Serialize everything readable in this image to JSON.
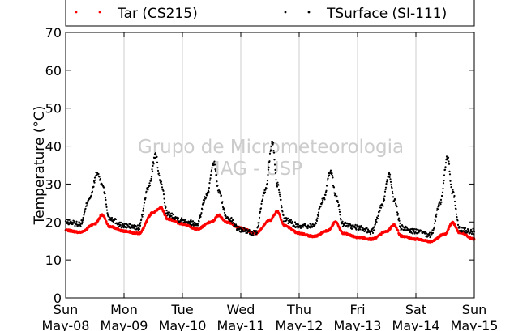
{
  "chart_data": {
    "type": "scatter",
    "ylabel": "Temperature (°C)",
    "ylim": [
      0,
      70
    ],
    "yticks": [
      0,
      10,
      20,
      30,
      40,
      50,
      60,
      70
    ],
    "x_unit": "day",
    "xlim": [
      "2015-05-08",
      "2015-05-15"
    ],
    "xtick_labels": [
      {
        "day": "Sun",
        "date": "May-08"
      },
      {
        "day": "Mon",
        "date": "May-09"
      },
      {
        "day": "Tue",
        "date": "May-10"
      },
      {
        "day": "Wed",
        "date": "May-11"
      },
      {
        "day": "Thu",
        "date": "May-12"
      },
      {
        "day": "Fri",
        "date": "May-13"
      },
      {
        "day": "Sat",
        "date": "May-14"
      },
      {
        "day": "Sun",
        "date": "May-15"
      }
    ],
    "grid": "vertical",
    "legend_position": "top",
    "watermark": [
      "Grupo de Micrometeorologia",
      "IAG - USP"
    ],
    "series": [
      {
        "name": "Tar (CS215)",
        "color": "#ff0000",
        "marker": "dense-dot",
        "x": [
          "2015-05-08 00:00",
          "2015-05-08 06:00",
          "2015-05-08 12:00",
          "2015-05-08 15:00",
          "2015-05-08 18:00",
          "2015-05-09 00:00",
          "2015-05-09 06:00",
          "2015-05-09 12:00",
          "2015-05-09 15:00",
          "2015-05-09 18:00",
          "2015-05-10 00:00",
          "2015-05-10 06:00",
          "2015-05-10 12:00",
          "2015-05-10 15:00",
          "2015-05-10 18:00",
          "2015-05-11 00:00",
          "2015-05-11 06:00",
          "2015-05-11 12:00",
          "2015-05-11 15:00",
          "2015-05-11 18:00",
          "2015-05-12 00:00",
          "2015-05-12 06:00",
          "2015-05-12 12:00",
          "2015-05-12 15:00",
          "2015-05-12 18:00",
          "2015-05-13 00:00",
          "2015-05-13 06:00",
          "2015-05-13 12:00",
          "2015-05-13 15:00",
          "2015-05-13 18:00",
          "2015-05-14 00:00",
          "2015-05-14 06:00",
          "2015-05-14 12:00",
          "2015-05-14 15:00",
          "2015-05-14 18:00",
          "2015-05-15 00:00"
        ],
        "y": [
          17.8,
          17.3,
          19.5,
          21.8,
          18.8,
          17.6,
          17.0,
          22.5,
          23.8,
          20.8,
          19.5,
          18.2,
          20.0,
          21.8,
          20.0,
          18.5,
          17.0,
          20.5,
          22.8,
          19.0,
          17.0,
          16.2,
          17.8,
          20.0,
          17.0,
          16.0,
          15.5,
          17.5,
          19.2,
          16.3,
          15.5,
          14.9,
          16.8,
          19.8,
          17.2,
          15.5
        ]
      },
      {
        "name": "TSurface (SI-111)",
        "color": "#000000",
        "marker": "dot",
        "x": [
          "2015-05-08 00:00",
          "2015-05-08 06:00",
          "2015-05-08 10:00",
          "2015-05-08 13:00",
          "2015-05-08 15:00",
          "2015-05-08 18:00",
          "2015-05-09 00:00",
          "2015-05-09 06:00",
          "2015-05-09 10:00",
          "2015-05-09 13:00",
          "2015-05-09 15:00",
          "2015-05-09 18:00",
          "2015-05-10 00:00",
          "2015-05-10 06:00",
          "2015-05-10 10:00",
          "2015-05-10 13:00",
          "2015-05-10 15:00",
          "2015-05-10 18:00",
          "2015-05-11 00:00",
          "2015-05-11 06:00",
          "2015-05-11 10:00",
          "2015-05-11 13:00",
          "2015-05-11 15:00",
          "2015-05-11 18:00",
          "2015-05-12 00:00",
          "2015-05-12 06:00",
          "2015-05-12 10:00",
          "2015-05-12 13:00",
          "2015-05-12 15:00",
          "2015-05-12 18:00",
          "2015-05-13 00:00",
          "2015-05-13 06:00",
          "2015-05-13 10:00",
          "2015-05-13 13:00",
          "2015-05-13 15:00",
          "2015-05-13 18:00",
          "2015-05-14 00:00",
          "2015-05-14 06:00",
          "2015-05-14 10:00",
          "2015-05-14 13:00",
          "2015-05-14 15:00",
          "2015-05-14 18:00",
          "2015-05-15 00:00"
        ],
        "y": [
          20.0,
          19.5,
          26.5,
          32.8,
          30.0,
          21.0,
          19.0,
          18.5,
          29.0,
          37.5,
          30.5,
          22.0,
          20.5,
          19.5,
          27.0,
          35.5,
          28.0,
          21.5,
          18.0,
          17.0,
          28.0,
          41.0,
          30.0,
          20.5,
          19.0,
          19.0,
          26.0,
          33.5,
          27.0,
          19.5,
          18.5,
          17.5,
          24.0,
          32.5,
          26.0,
          18.5,
          17.5,
          16.5,
          25.0,
          37.0,
          28.0,
          18.0,
          17.5
        ]
      }
    ]
  }
}
